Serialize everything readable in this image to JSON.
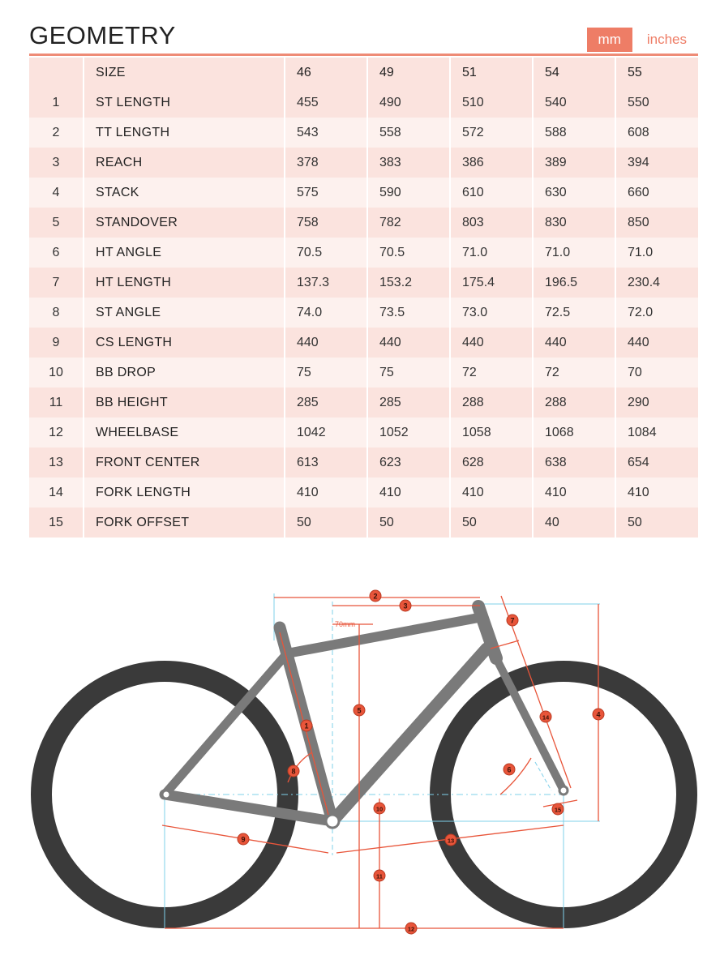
{
  "header": {
    "title": "GEOMETRY",
    "units": {
      "active": "mm",
      "inactive": "inches"
    }
  },
  "table": {
    "size_label": "SIZE",
    "sizes": [
      "46",
      "49",
      "51",
      "54",
      "55"
    ],
    "rows": [
      {
        "num": "1",
        "label": "ST LENGTH",
        "values": [
          "455",
          "490",
          "510",
          "540",
          "550"
        ]
      },
      {
        "num": "2",
        "label": "TT LENGTH",
        "values": [
          "543",
          "558",
          "572",
          "588",
          "608"
        ]
      },
      {
        "num": "3",
        "label": "REACH",
        "values": [
          "378",
          "383",
          "386",
          "389",
          "394"
        ]
      },
      {
        "num": "4",
        "label": "STACK",
        "values": [
          "575",
          "590",
          "610",
          "630",
          "660"
        ]
      },
      {
        "num": "5",
        "label": "STANDOVER",
        "values": [
          "758",
          "782",
          "803",
          "830",
          "850"
        ]
      },
      {
        "num": "6",
        "label": "HT ANGLE",
        "values": [
          "70.5",
          "70.5",
          "71.0",
          "71.0",
          "71.0"
        ]
      },
      {
        "num": "7",
        "label": "HT LENGTH",
        "values": [
          "137.3",
          "153.2",
          "175.4",
          "196.5",
          "230.4"
        ]
      },
      {
        "num": "8",
        "label": "ST ANGLE",
        "values": [
          "74.0",
          "73.5",
          "73.0",
          "72.5",
          "72.0"
        ]
      },
      {
        "num": "9",
        "label": "CS LENGTH",
        "values": [
          "440",
          "440",
          "440",
          "440",
          "440"
        ]
      },
      {
        "num": "10",
        "label": "BB DROP",
        "values": [
          "75",
          "75",
          "72",
          "72",
          "70"
        ]
      },
      {
        "num": "11",
        "label": "BB HEIGHT",
        "values": [
          "285",
          "285",
          "288",
          "288",
          "290"
        ]
      },
      {
        "num": "12",
        "label": "WHEELBASE",
        "values": [
          "1042",
          "1052",
          "1058",
          "1068",
          "1084"
        ]
      },
      {
        "num": "13",
        "label": "FRONT CENTER",
        "values": [
          "613",
          "623",
          "628",
          "638",
          "654"
        ]
      },
      {
        "num": "14",
        "label": "FORK LENGTH",
        "values": [
          "410",
          "410",
          "410",
          "410",
          "410"
        ]
      },
      {
        "num": "15",
        "label": "FORK OFFSET",
        "values": [
          "50",
          "50",
          "50",
          "40",
          "50"
        ]
      }
    ]
  },
  "diagram": {
    "offset_label": "70mm",
    "markers": [
      "1",
      "2",
      "3",
      "4",
      "5",
      "6",
      "7",
      "8",
      "9",
      "10",
      "11",
      "12",
      "13",
      "14",
      "15"
    ]
  },
  "colors": {
    "accent": "#ee7d66",
    "row_dark": "#fbe3de",
    "row_light": "#fdf1ee",
    "frame": "#7a7a7a",
    "tire": "#3a3a3a",
    "dimension": "#e8553a",
    "guide": "#7fd0ea"
  }
}
